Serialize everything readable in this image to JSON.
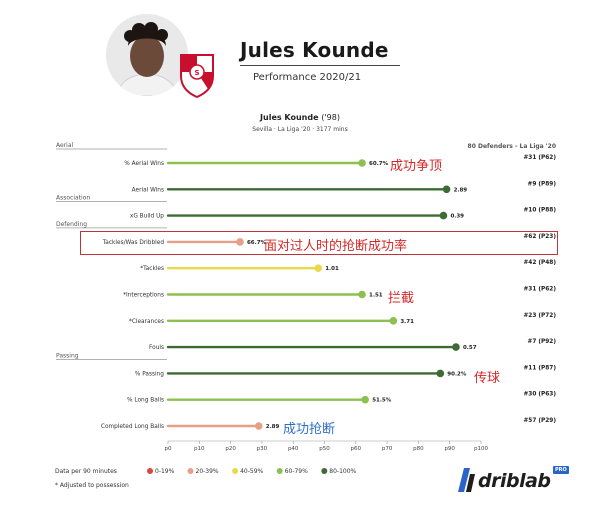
{
  "header": {
    "player_name": "Jules Kounde",
    "subtitle": "Performance 2020/21"
  },
  "chart_header": {
    "name": "Jules Kounde",
    "year": "('98)",
    "subline": "Sevilla · La Liga '20 · 3177 mins",
    "peer_group": "80 Defenders - La Liga '20"
  },
  "chart_data": {
    "type": "bar",
    "orientation": "horizontal",
    "xlim": [
      0,
      100
    ],
    "x_ticks": [
      "p0",
      "p10",
      "p20",
      "p30",
      "p40",
      "p50",
      "p60",
      "p70",
      "p80",
      "p90",
      "p100"
    ],
    "groups": [
      {
        "label": "Aerial",
        "first_row": 0
      },
      {
        "label": "Association",
        "first_row": 2
      },
      {
        "label": "Defending",
        "first_row": 3
      },
      {
        "label": "Passing",
        "first_row": 8
      }
    ],
    "rows": [
      {
        "label": "% Aerial Wins",
        "percentile": 62,
        "value_label": "60.7%",
        "rank": "#31 (P62)"
      },
      {
        "label": "Aerial Wins",
        "percentile": 89,
        "value_label": "2.89",
        "rank": "#9 (P89)"
      },
      {
        "label": "xG Build Up",
        "percentile": 88,
        "value_label": "0.39",
        "rank": "#10 (P88)"
      },
      {
        "label": "Tackles/Was Dribbled",
        "percentile": 23,
        "value_label": "66.7%",
        "rank": "#62 (P23)"
      },
      {
        "label": "*Tackles",
        "percentile": 48,
        "value_label": "1.01",
        "rank": "#42 (P48)"
      },
      {
        "label": "*Interceptions",
        "percentile": 62,
        "value_label": "1.51",
        "rank": "#31 (P62)"
      },
      {
        "label": "*Clearances",
        "percentile": 72,
        "value_label": "3.71",
        "rank": "#23 (P72)"
      },
      {
        "label": "Fouls",
        "percentile": 92,
        "value_label": "0.57",
        "rank": "#7 (P92)"
      },
      {
        "label": "% Passing",
        "percentile": 87,
        "value_label": "90.2%",
        "rank": "#11 (P87)"
      },
      {
        "label": "% Long Balls",
        "percentile": 63,
        "value_label": "51.5%",
        "rank": "#30 (P63)"
      },
      {
        "label": "Completed Long Balls",
        "percentile": 29,
        "value_label": "2.89",
        "rank": "#57 (P29)"
      }
    ],
    "legend": [
      {
        "label": "0-19%",
        "color": "#d9473f"
      },
      {
        "label": "20-39%",
        "color": "#e6a085"
      },
      {
        "label": "40-59%",
        "color": "#ecd94a"
      },
      {
        "label": "60-79%",
        "color": "#8cc152"
      },
      {
        "label": "80-100%",
        "color": "#3d6b34"
      }
    ]
  },
  "notes": {
    "per90": "Data per 90 minutes",
    "adjusted": "* Adjusted to possession"
  },
  "annotations": [
    {
      "text": "成功争顶",
      "row": 0
    },
    {
      "text": "面对过人时的抢断成功率",
      "row": 3
    },
    {
      "text": "拦截",
      "row": 5
    },
    {
      "text": "传球",
      "row": 8
    },
    {
      "text": "成功抢断",
      "row": 10
    }
  ],
  "logo": {
    "text": "driblab",
    "badge": "PRO"
  }
}
